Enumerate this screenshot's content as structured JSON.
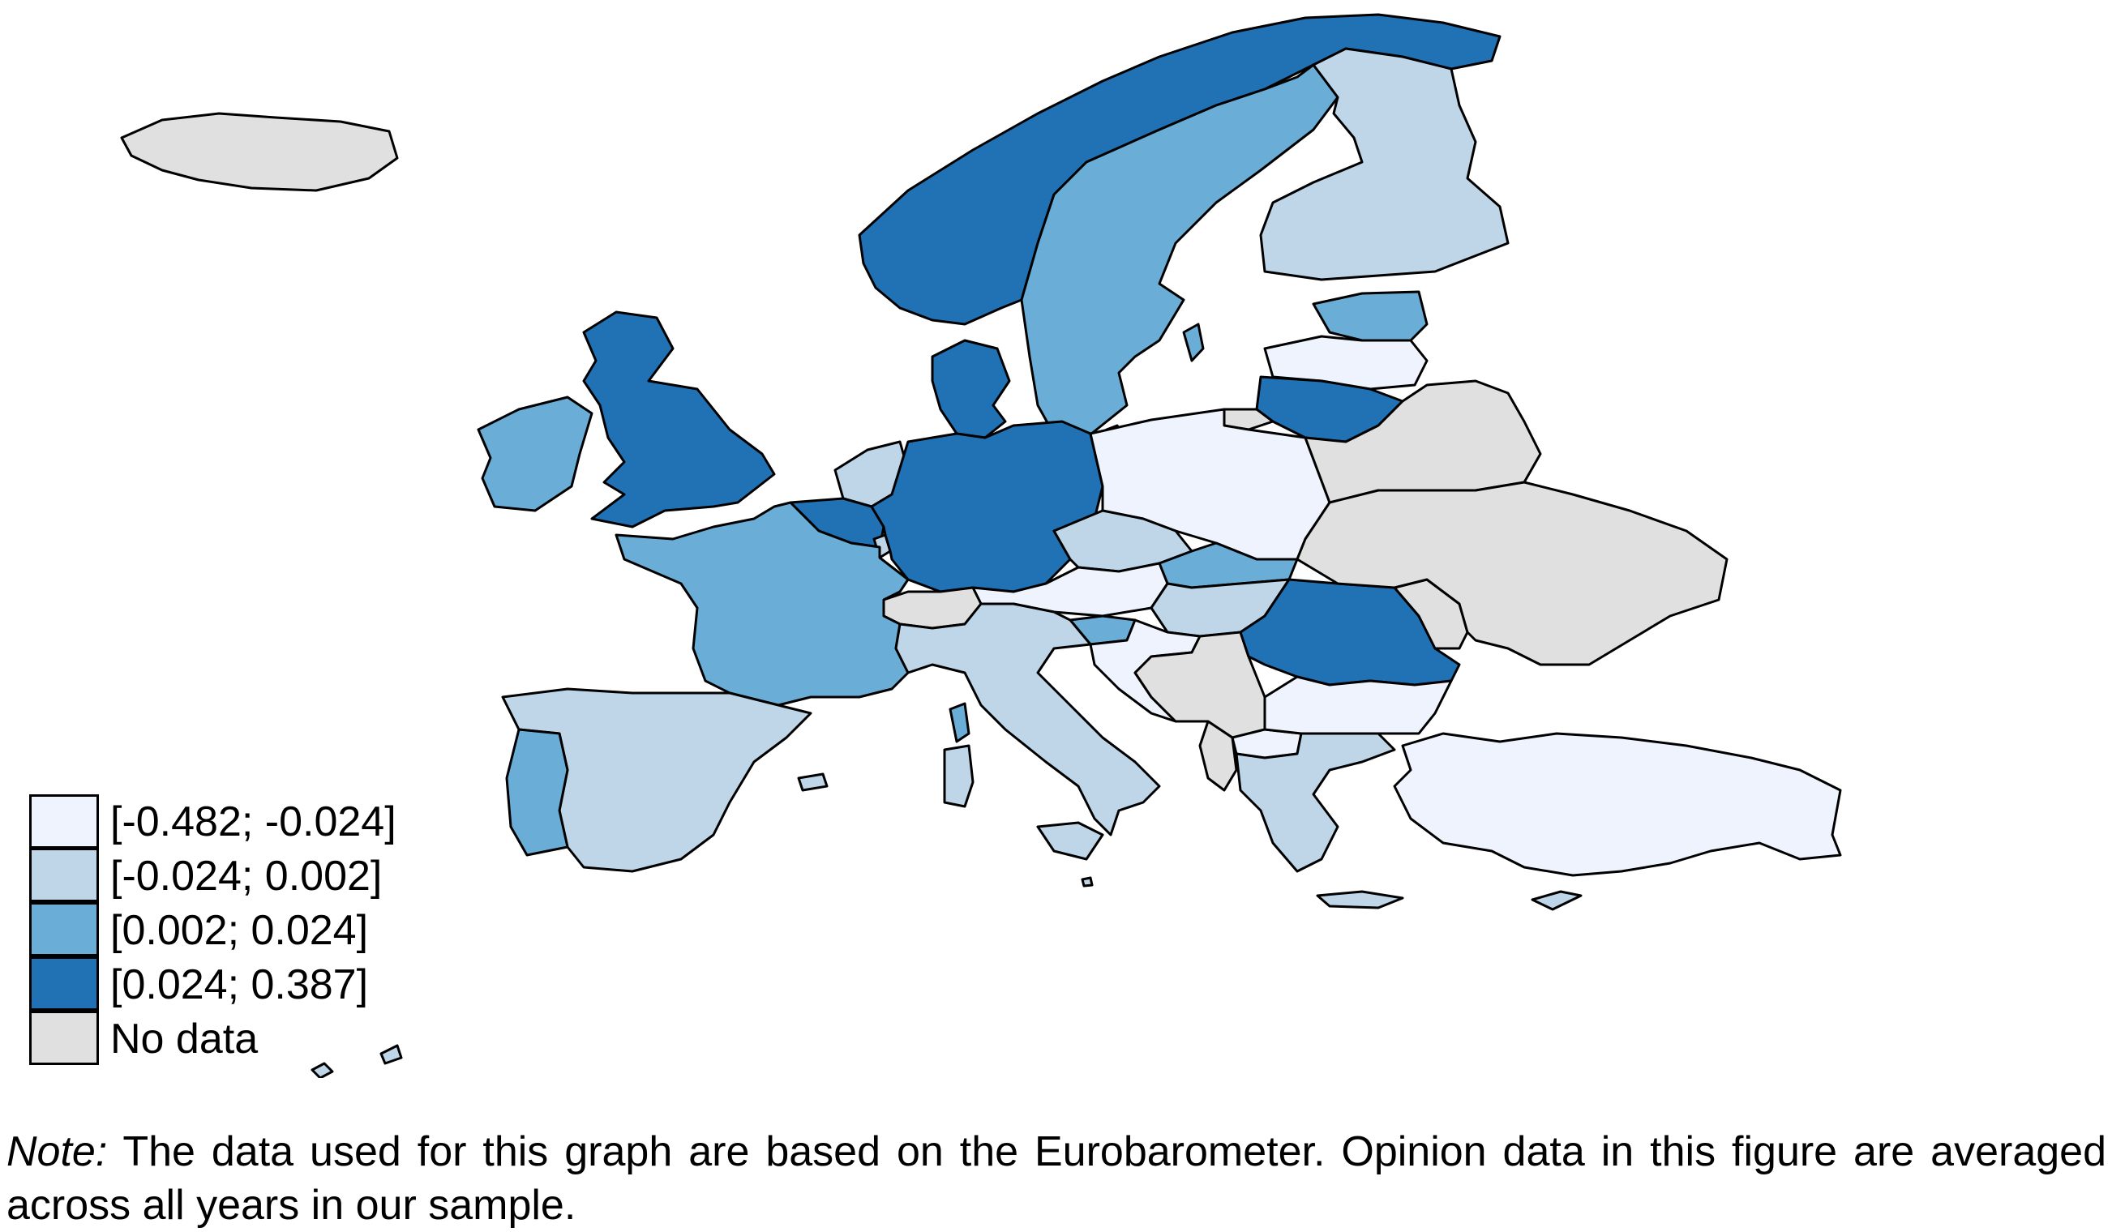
{
  "palette": {
    "c1": "#eef3fd",
    "c2": "#bed6e8",
    "c3": "#6aadd6",
    "c4": "#2171b5",
    "nodata": "#e0e0e0"
  },
  "legend": {
    "items": [
      {
        "label": "[-0.482; -0.024]",
        "color": "#eef3fd"
      },
      {
        "label": "[-0.024; 0.002]",
        "color": "#bed6e8"
      },
      {
        "label": "[0.002; 0.024]",
        "color": "#6aadd6"
      },
      {
        "label": "[0.024; 0.387]",
        "color": "#2171b5"
      },
      {
        "label": "No data",
        "color": "#e0e0e0"
      }
    ]
  },
  "note": {
    "prefix": "Note:",
    "text": " The data used for this graph are based on the Eurobarometer. Opinion data in this figure are averaged across all years in our sample."
  },
  "countries": {
    "iceland": "nodata",
    "ireland": "c3",
    "uk": "c4",
    "norway": "c4",
    "sweden": "c3",
    "finland": "c2",
    "estonia": "c3",
    "latvia": "c1",
    "lithuania": "c4",
    "denmark": "c4",
    "netherlands": "c2",
    "belgium": "c4",
    "luxembourg": "c2",
    "germany": "c4",
    "poland": "c1",
    "czechia": "c2",
    "slovakia": "c3",
    "austria": "c1",
    "switzerland": "nodata",
    "hungary": "c2",
    "slovenia": "c3",
    "croatia": "c1",
    "france": "c3",
    "spain": "c2",
    "portugal": "c3",
    "italy": "c2",
    "sardinia": "c2",
    "sicily": "c2",
    "corsica": "c3",
    "romania": "c4",
    "moldova": "nodata",
    "bulgaria": "c1",
    "balkans": "nodata",
    "albania": "nodata",
    "macedonia": "c1",
    "greece": "c2",
    "crete": "c2",
    "turkey": "c1",
    "cyprus": "c2",
    "belarus": "nodata",
    "ukraine": "nodata",
    "russia-kaliningrad": "nodata",
    "gotland": "c3",
    "bornholm": "c4",
    "aland": "c3",
    "malta": "c2"
  }
}
